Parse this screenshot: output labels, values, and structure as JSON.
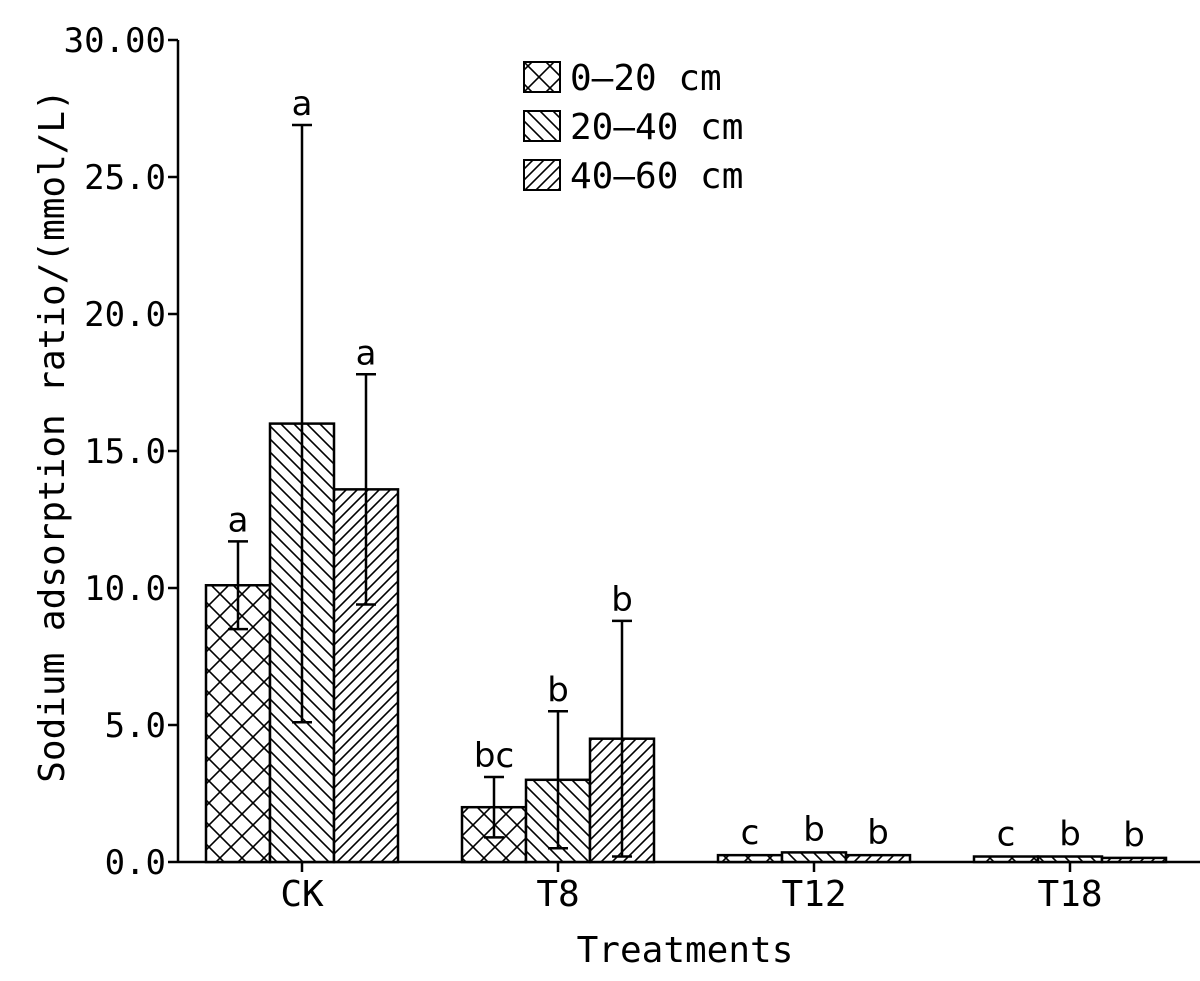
{
  "chart_data": {
    "type": "bar",
    "xlabel": "Treatments",
    "ylabel": "Sodium adsorption ratio/(mmol/L)",
    "ylim": [
      0,
      30
    ],
    "yticks": [
      "0.0",
      "5.0",
      "10.0",
      "15.0",
      "20.0",
      "25.0",
      "30.00"
    ],
    "categories": [
      "CK",
      "T8",
      "T12",
      "T18"
    ],
    "legend_position": "top-center",
    "grid": false,
    "series": [
      {
        "name": "0—20 cm",
        "pattern": "crosshatch",
        "values": [
          10.1,
          2.0,
          0.25,
          0.2
        ],
        "errors": [
          1.6,
          1.1,
          0.05,
          0.03
        ],
        "labels": [
          "a",
          "bc",
          "c",
          "c"
        ]
      },
      {
        "name": "20—40 cm",
        "pattern": "backslash",
        "values": [
          16.0,
          3.0,
          0.35,
          0.2
        ],
        "errors": [
          10.9,
          2.5,
          0.05,
          0.03
        ],
        "labels": [
          "a",
          "b",
          "b",
          "b"
        ]
      },
      {
        "name": "40—60 cm",
        "pattern": "slash",
        "values": [
          13.6,
          4.5,
          0.25,
          0.15
        ],
        "errors": [
          4.2,
          4.3,
          0.05,
          0.05
        ],
        "labels": [
          "a",
          "b",
          "b",
          "b"
        ]
      }
    ]
  }
}
